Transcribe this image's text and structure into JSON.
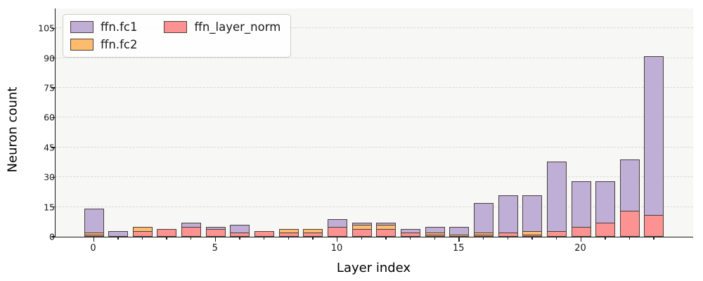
{
  "chart_data": {
    "type": "bar",
    "stacked": true,
    "xlabel": "Layer index",
    "ylabel": "Neuron count",
    "x": [
      0,
      1,
      2,
      3,
      4,
      5,
      6,
      7,
      8,
      9,
      10,
      11,
      12,
      13,
      14,
      15,
      16,
      17,
      18,
      19,
      20,
      21,
      22,
      23
    ],
    "series": [
      {
        "name": "ffn.fc1",
        "color": "#bfaed6",
        "values": [
          14,
          3,
          1,
          4,
          7,
          5,
          6,
          2,
          4,
          4,
          9,
          7,
          7,
          4,
          5,
          5,
          17,
          21,
          21,
          38,
          28,
          28,
          39,
          91
        ]
      },
      {
        "name": "ffn.fc2",
        "color": "#fdbb6e",
        "values": [
          2,
          0,
          5,
          4,
          2,
          4,
          1,
          2,
          4,
          4,
          2,
          6,
          6,
          2,
          2,
          1,
          2,
          1,
          3,
          1,
          2,
          6,
          5,
          6
        ]
      },
      {
        "name": "ffn_layer_norm",
        "color": "#fc9292",
        "values": [
          1,
          0,
          3,
          4,
          5,
          4,
          2,
          3,
          2,
          2,
          5,
          4,
          4,
          2,
          1,
          0,
          1,
          2,
          1,
          3,
          5,
          7,
          13,
          11
        ]
      }
    ],
    "ylim": [
      0,
      115
    ],
    "yticks": [
      0,
      15,
      30,
      45,
      60,
      75,
      90,
      105
    ],
    "xticks": [
      0,
      5,
      10,
      15,
      20
    ],
    "grid": "horizontal-dashed",
    "legend_position": "upper-left",
    "plot_background": "#f7f7f6",
    "bar_edge_color": "#4a4038"
  }
}
